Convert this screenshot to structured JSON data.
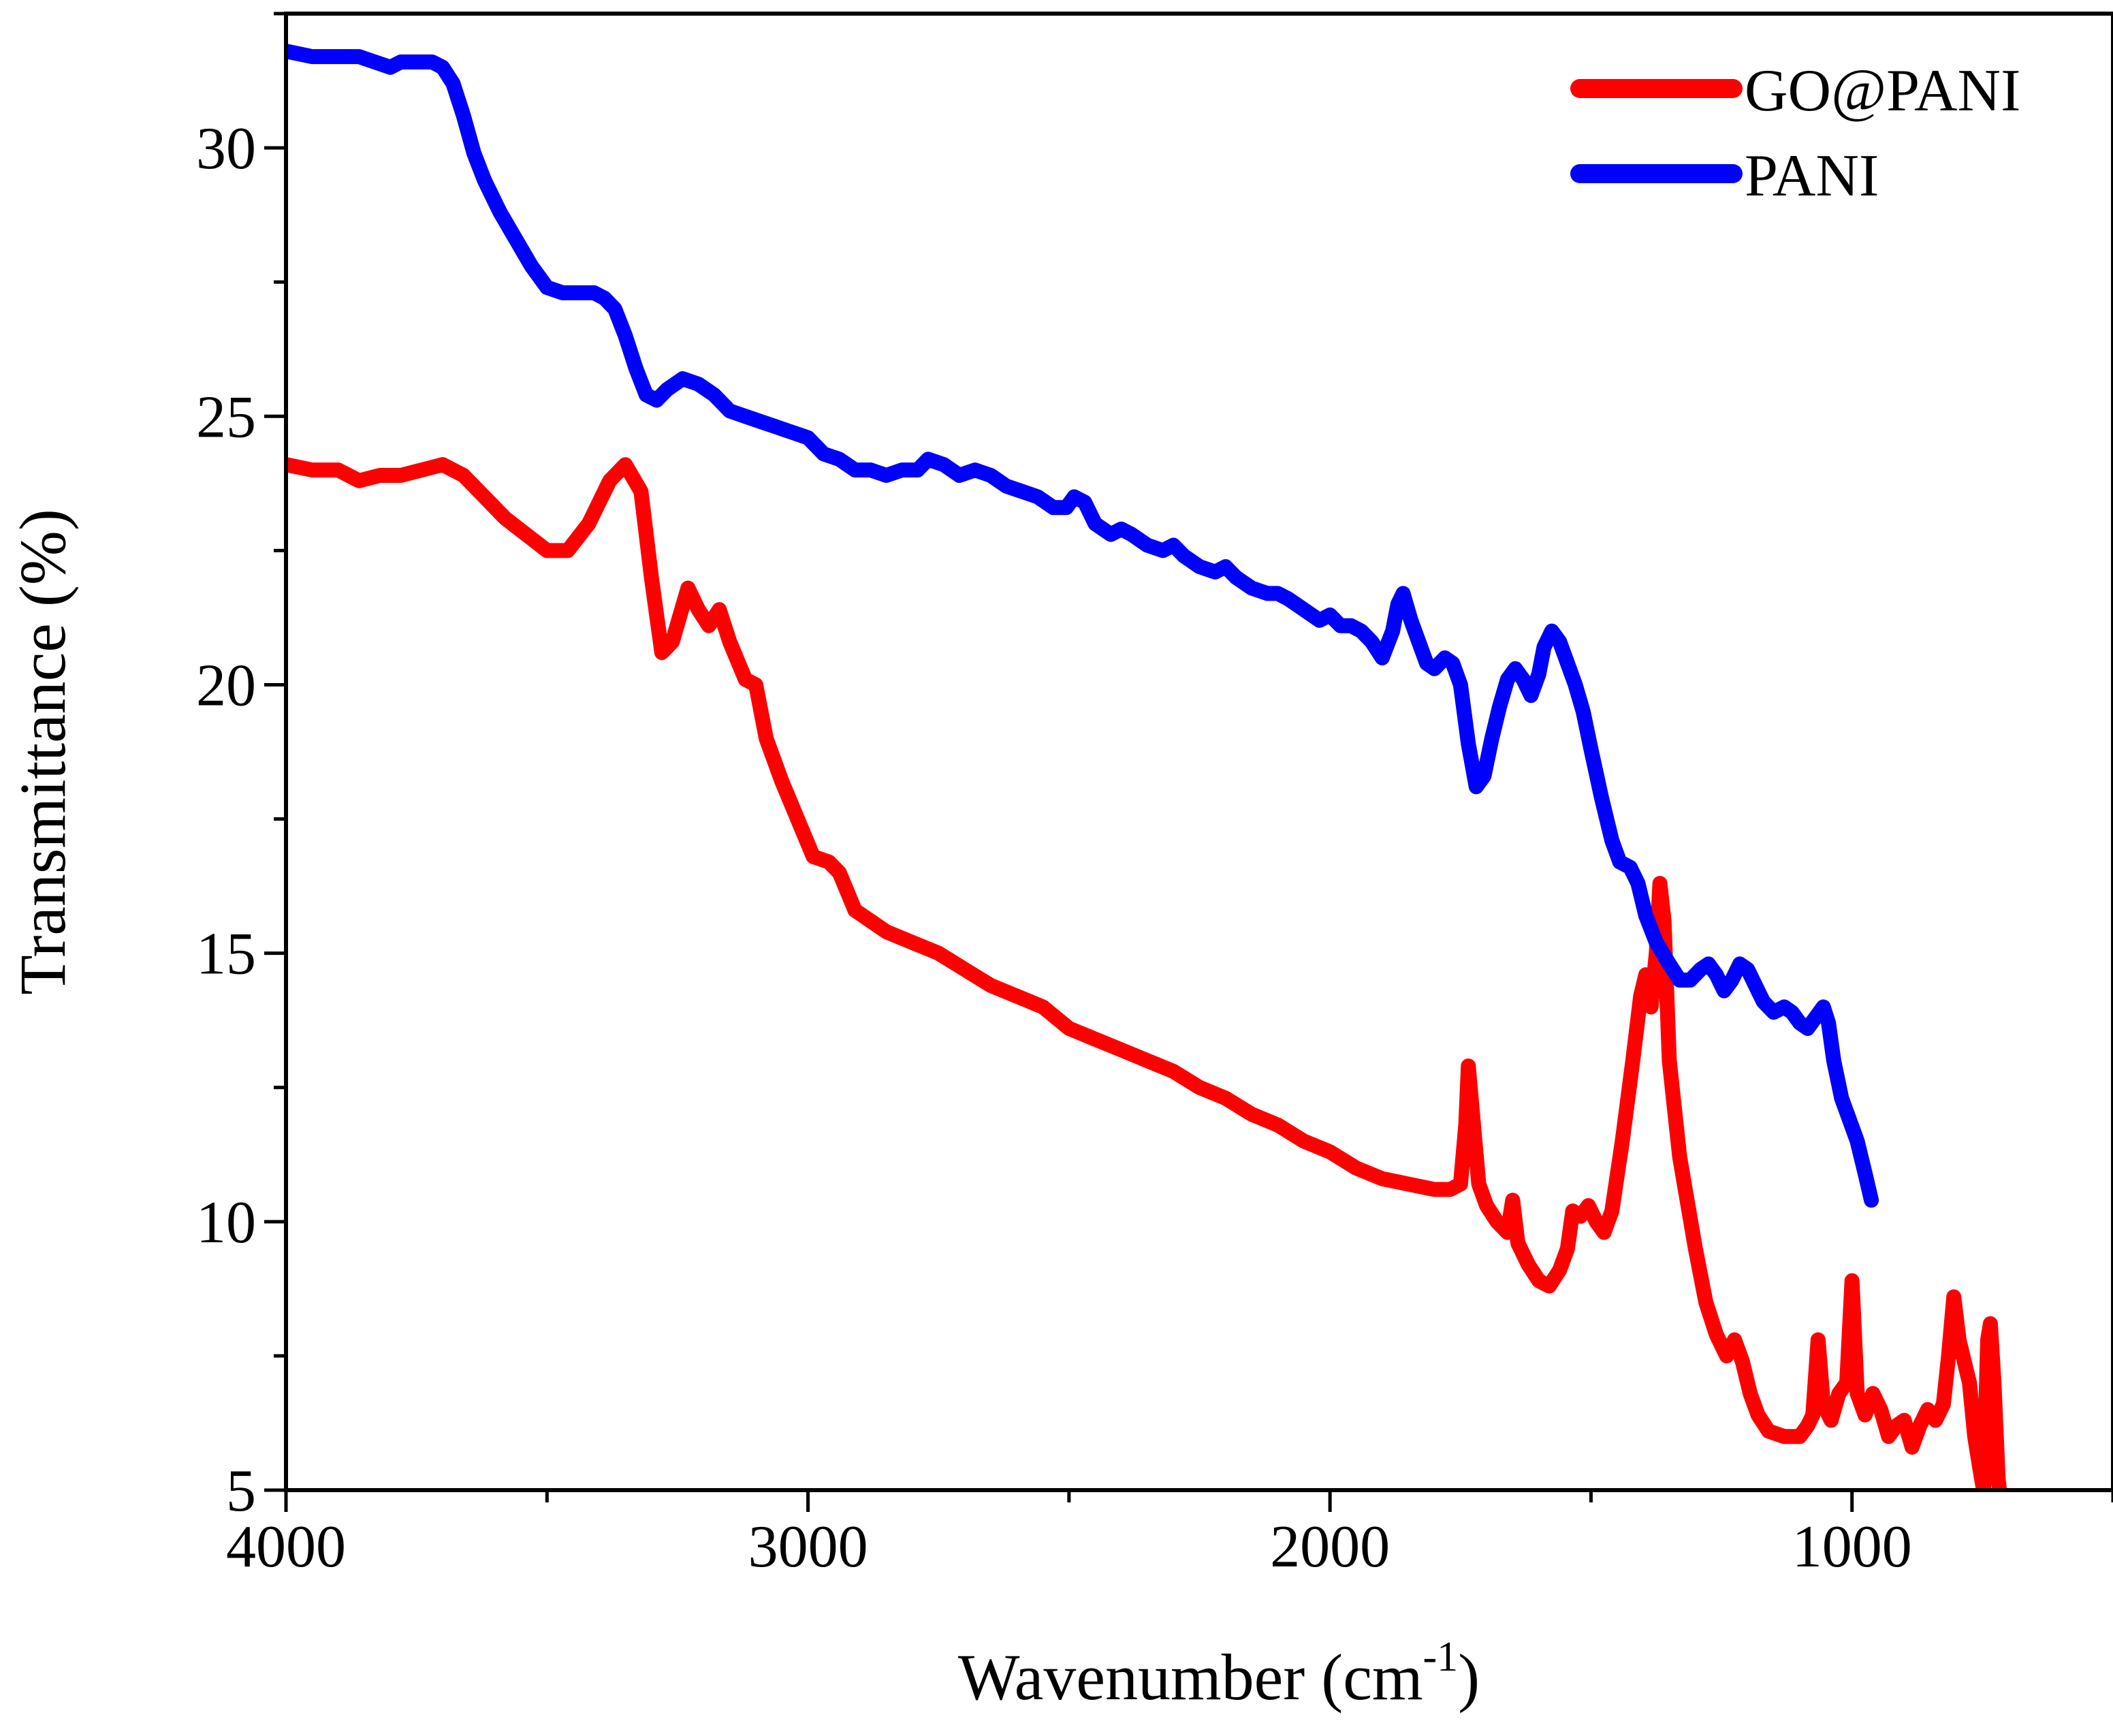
{
  "chart_data": {
    "type": "line",
    "title": "",
    "xlabel_main": "Wavenumber (cm",
    "xlabel_sup": "-1",
    "xlabel_close": ")",
    "ylabel": "Transmittance (%)",
    "xlim": [
      4000,
      500
    ],
    "ylim": [
      5,
      32.5
    ],
    "x_ticks": [
      4000,
      3000,
      2000,
      1000
    ],
    "x_tick_labels": [
      "4000",
      "3000",
      "2000",
      "1000"
    ],
    "x_minor_ticks": [
      3500,
      2500,
      1500,
      500
    ],
    "y_ticks": [
      5,
      10,
      15,
      20,
      25,
      30
    ],
    "y_tick_labels": [
      "5",
      "10",
      "15",
      "20",
      "25",
      "30"
    ],
    "y_minor_ticks": [
      7.5,
      12.5,
      17.5,
      22.5,
      27.5,
      32.5
    ],
    "legend_position": "top-right",
    "series": [
      {
        "name": "GO@PANI",
        "color": "#ff0000",
        "points": [
          [
            4000,
            24.1
          ],
          [
            3950,
            24.0
          ],
          [
            3900,
            24.0
          ],
          [
            3860,
            23.8
          ],
          [
            3820,
            23.9
          ],
          [
            3780,
            23.9
          ],
          [
            3740,
            24.0
          ],
          [
            3700,
            24.1
          ],
          [
            3660,
            23.9
          ],
          [
            3620,
            23.5
          ],
          [
            3580,
            23.1
          ],
          [
            3540,
            22.8
          ],
          [
            3500,
            22.5
          ],
          [
            3460,
            22.5
          ],
          [
            3420,
            23.0
          ],
          [
            3380,
            23.8
          ],
          [
            3350,
            24.1
          ],
          [
            3320,
            23.6
          ],
          [
            3300,
            22.0
          ],
          [
            3280,
            20.6
          ],
          [
            3260,
            20.8
          ],
          [
            3230,
            21.8
          ],
          [
            3210,
            21.4
          ],
          [
            3190,
            21.1
          ],
          [
            3170,
            21.4
          ],
          [
            3150,
            20.8
          ],
          [
            3120,
            20.1
          ],
          [
            3100,
            20.0
          ],
          [
            3080,
            19.0
          ],
          [
            3050,
            18.2
          ],
          [
            3020,
            17.5
          ],
          [
            2990,
            16.8
          ],
          [
            2960,
            16.7
          ],
          [
            2940,
            16.5
          ],
          [
            2910,
            15.8
          ],
          [
            2880,
            15.6
          ],
          [
            2850,
            15.4
          ],
          [
            2800,
            15.2
          ],
          [
            2750,
            15.0
          ],
          [
            2700,
            14.7
          ],
          [
            2650,
            14.4
          ],
          [
            2600,
            14.2
          ],
          [
            2550,
            14.0
          ],
          [
            2500,
            13.6
          ],
          [
            2450,
            13.4
          ],
          [
            2400,
            13.2
          ],
          [
            2350,
            13.0
          ],
          [
            2300,
            12.8
          ],
          [
            2250,
            12.5
          ],
          [
            2200,
            12.3
          ],
          [
            2150,
            12.0
          ],
          [
            2100,
            11.8
          ],
          [
            2050,
            11.5
          ],
          [
            2000,
            11.3
          ],
          [
            1950,
            11.0
          ],
          [
            1900,
            10.8
          ],
          [
            1850,
            10.7
          ],
          [
            1800,
            10.6
          ],
          [
            1770,
            10.6
          ],
          [
            1750,
            10.7
          ],
          [
            1740,
            11.8
          ],
          [
            1735,
            12.9
          ],
          [
            1725,
            11.8
          ],
          [
            1715,
            10.7
          ],
          [
            1700,
            10.3
          ],
          [
            1680,
            10.0
          ],
          [
            1660,
            9.8
          ],
          [
            1650,
            10.4
          ],
          [
            1640,
            9.6
          ],
          [
            1620,
            9.2
          ],
          [
            1600,
            8.9
          ],
          [
            1580,
            8.8
          ],
          [
            1560,
            9.1
          ],
          [
            1545,
            9.5
          ],
          [
            1535,
            10.2
          ],
          [
            1520,
            10.1
          ],
          [
            1505,
            10.3
          ],
          [
            1490,
            10.0
          ],
          [
            1475,
            9.8
          ],
          [
            1460,
            10.2
          ],
          [
            1440,
            11.5
          ],
          [
            1420,
            13.0
          ],
          [
            1405,
            14.2
          ],
          [
            1395,
            14.6
          ],
          [
            1385,
            14.0
          ],
          [
            1375,
            15.0
          ],
          [
            1368,
            16.3
          ],
          [
            1360,
            15.6
          ],
          [
            1350,
            13.0
          ],
          [
            1330,
            11.2
          ],
          [
            1300,
            9.5
          ],
          [
            1280,
            8.5
          ],
          [
            1260,
            7.9
          ],
          [
            1240,
            7.5
          ],
          [
            1225,
            7.8
          ],
          [
            1210,
            7.4
          ],
          [
            1195,
            6.8
          ],
          [
            1180,
            6.4
          ],
          [
            1160,
            6.1
          ],
          [
            1130,
            6.0
          ],
          [
            1100,
            6.0
          ],
          [
            1085,
            6.2
          ],
          [
            1075,
            6.4
          ],
          [
            1065,
            7.8
          ],
          [
            1055,
            6.6
          ],
          [
            1040,
            6.3
          ],
          [
            1025,
            6.8
          ],
          [
            1010,
            7.0
          ],
          [
            1000,
            8.9
          ],
          [
            990,
            6.8
          ],
          [
            975,
            6.4
          ],
          [
            960,
            6.8
          ],
          [
            945,
            6.5
          ],
          [
            930,
            6.0
          ],
          [
            915,
            6.2
          ],
          [
            900,
            6.3
          ],
          [
            885,
            5.8
          ],
          [
            870,
            6.2
          ],
          [
            855,
            6.5
          ],
          [
            840,
            6.3
          ],
          [
            825,
            6.6
          ],
          [
            815,
            7.5
          ],
          [
            805,
            8.6
          ],
          [
            795,
            7.8
          ],
          [
            785,
            7.4
          ],
          [
            775,
            7.0
          ],
          [
            765,
            6.0
          ],
          [
            755,
            5.4
          ],
          [
            748,
            5.0
          ],
          [
            740,
            7.8
          ],
          [
            735,
            8.1
          ],
          [
            728,
            7.0
          ],
          [
            720,
            5.2
          ],
          [
            715,
            4.8
          ]
        ]
      },
      {
        "name": "PANI",
        "color": "#0000ff",
        "points": [
          [
            4000,
            31.8
          ],
          [
            3950,
            31.7
          ],
          [
            3900,
            31.7
          ],
          [
            3860,
            31.7
          ],
          [
            3830,
            31.6
          ],
          [
            3800,
            31.5
          ],
          [
            3780,
            31.6
          ],
          [
            3750,
            31.6
          ],
          [
            3720,
            31.6
          ],
          [
            3700,
            31.5
          ],
          [
            3680,
            31.2
          ],
          [
            3660,
            30.6
          ],
          [
            3640,
            29.9
          ],
          [
            3620,
            29.4
          ],
          [
            3590,
            28.8
          ],
          [
            3560,
            28.3
          ],
          [
            3530,
            27.8
          ],
          [
            3500,
            27.4
          ],
          [
            3470,
            27.3
          ],
          [
            3440,
            27.3
          ],
          [
            3410,
            27.3
          ],
          [
            3390,
            27.2
          ],
          [
            3370,
            27.0
          ],
          [
            3350,
            26.5
          ],
          [
            3330,
            25.9
          ],
          [
            3310,
            25.4
          ],
          [
            3290,
            25.3
          ],
          [
            3270,
            25.5
          ],
          [
            3240,
            25.7
          ],
          [
            3210,
            25.6
          ],
          [
            3180,
            25.4
          ],
          [
            3150,
            25.1
          ],
          [
            3120,
            25.0
          ],
          [
            3090,
            24.9
          ],
          [
            3060,
            24.8
          ],
          [
            3030,
            24.7
          ],
          [
            3000,
            24.6
          ],
          [
            2970,
            24.3
          ],
          [
            2940,
            24.2
          ],
          [
            2910,
            24.0
          ],
          [
            2880,
            24.0
          ],
          [
            2850,
            23.9
          ],
          [
            2820,
            24.0
          ],
          [
            2790,
            24.0
          ],
          [
            2770,
            24.2
          ],
          [
            2740,
            24.1
          ],
          [
            2710,
            23.9
          ],
          [
            2680,
            24.0
          ],
          [
            2650,
            23.9
          ],
          [
            2620,
            23.7
          ],
          [
            2590,
            23.6
          ],
          [
            2560,
            23.5
          ],
          [
            2530,
            23.3
          ],
          [
            2505,
            23.3
          ],
          [
            2490,
            23.5
          ],
          [
            2470,
            23.4
          ],
          [
            2450,
            23.0
          ],
          [
            2420,
            22.8
          ],
          [
            2400,
            22.9
          ],
          [
            2380,
            22.8
          ],
          [
            2350,
            22.6
          ],
          [
            2320,
            22.5
          ],
          [
            2300,
            22.6
          ],
          [
            2280,
            22.4
          ],
          [
            2250,
            22.2
          ],
          [
            2220,
            22.1
          ],
          [
            2200,
            22.2
          ],
          [
            2180,
            22.0
          ],
          [
            2150,
            21.8
          ],
          [
            2120,
            21.7
          ],
          [
            2100,
            21.7
          ],
          [
            2080,
            21.6
          ],
          [
            2050,
            21.4
          ],
          [
            2020,
            21.2
          ],
          [
            2000,
            21.3
          ],
          [
            1980,
            21.1
          ],
          [
            1960,
            21.1
          ],
          [
            1940,
            21.0
          ],
          [
            1920,
            20.8
          ],
          [
            1900,
            20.5
          ],
          [
            1880,
            21.0
          ],
          [
            1870,
            21.5
          ],
          [
            1860,
            21.7
          ],
          [
            1845,
            21.2
          ],
          [
            1830,
            20.8
          ],
          [
            1815,
            20.4
          ],
          [
            1800,
            20.3
          ],
          [
            1780,
            20.5
          ],
          [
            1765,
            20.4
          ],
          [
            1750,
            20.0
          ],
          [
            1735,
            18.9
          ],
          [
            1720,
            18.1
          ],
          [
            1705,
            18.3
          ],
          [
            1690,
            19.0
          ],
          [
            1675,
            19.6
          ],
          [
            1660,
            20.1
          ],
          [
            1645,
            20.3
          ],
          [
            1630,
            20.1
          ],
          [
            1615,
            19.8
          ],
          [
            1600,
            20.2
          ],
          [
            1590,
            20.7
          ],
          [
            1575,
            21.0
          ],
          [
            1560,
            20.8
          ],
          [
            1545,
            20.4
          ],
          [
            1530,
            20.0
          ],
          [
            1515,
            19.5
          ],
          [
            1500,
            18.8
          ],
          [
            1480,
            17.9
          ],
          [
            1460,
            17.1
          ],
          [
            1445,
            16.7
          ],
          [
            1425,
            16.6
          ],
          [
            1410,
            16.3
          ],
          [
            1395,
            15.7
          ],
          [
            1375,
            15.2
          ],
          [
            1350,
            14.8
          ],
          [
            1330,
            14.5
          ],
          [
            1310,
            14.5
          ],
          [
            1290,
            14.7
          ],
          [
            1275,
            14.8
          ],
          [
            1260,
            14.6
          ],
          [
            1245,
            14.3
          ],
          [
            1230,
            14.5
          ],
          [
            1215,
            14.8
          ],
          [
            1200,
            14.7
          ],
          [
            1185,
            14.4
          ],
          [
            1170,
            14.1
          ],
          [
            1150,
            13.9
          ],
          [
            1130,
            14.0
          ],
          [
            1115,
            13.9
          ],
          [
            1100,
            13.7
          ],
          [
            1085,
            13.6
          ],
          [
            1070,
            13.8
          ],
          [
            1055,
            14.0
          ],
          [
            1045,
            13.7
          ],
          [
            1035,
            13.0
          ],
          [
            1020,
            12.3
          ],
          [
            1005,
            11.9
          ],
          [
            990,
            11.5
          ],
          [
            975,
            10.9
          ],
          [
            963,
            10.4
          ]
        ]
      }
    ]
  }
}
